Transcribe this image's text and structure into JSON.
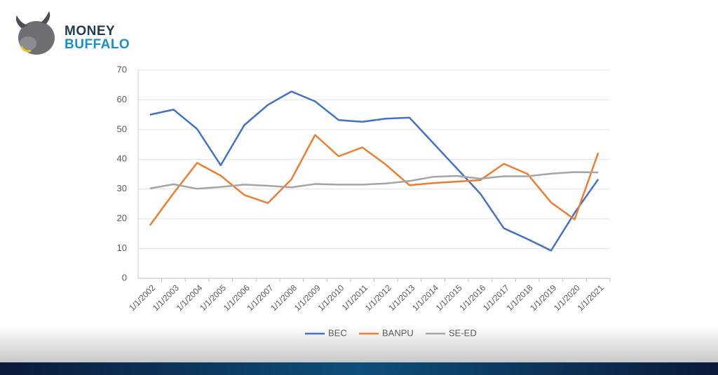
{
  "logo": {
    "line1": "MONEY",
    "line2": "BUFFALO"
  },
  "chart_data": {
    "type": "line",
    "categories": [
      "1/1/2002",
      "1/1/2003",
      "1/1/2004",
      "1/1/2005",
      "1/1/2006",
      "1/1/2007",
      "1/1/2008",
      "1/1/2009",
      "1/1/2010",
      "1/1/2011",
      "1/1/2012",
      "1/1/2013",
      "1/1/2014",
      "1/1/2015",
      "1/1/2016",
      "1/1/2017",
      "1/1/2018",
      "1/1/2019",
      "1/1/2020",
      "1/1/2021"
    ],
    "series": [
      {
        "name": "BEC",
        "color": "#4472c4",
        "values": [
          55,
          56.7,
          50.2,
          38,
          51.5,
          58.3,
          62.8,
          59.5,
          53.2,
          52.6,
          53.7,
          54,
          45.5,
          37,
          28.5,
          16.8,
          13.2,
          9.3,
          22,
          33.3
        ]
      },
      {
        "name": "BANPU",
        "color": "#ed7d31",
        "values": [
          17.8,
          28.6,
          38.8,
          34.5,
          28,
          25.3,
          33.3,
          48.2,
          41,
          44,
          38.2,
          31.3,
          32,
          32.5,
          33,
          38.5,
          35.1,
          25.5,
          19.8,
          42.2
        ]
      },
      {
        "name": "SE-ED",
        "color": "#a5a5a5",
        "values": [
          30.2,
          31.6,
          30.1,
          30.7,
          31.5,
          31.1,
          30.6,
          31.7,
          31.5,
          31.5,
          31.9,
          32.7,
          34.1,
          34.4,
          33.5,
          34.3,
          34.3,
          35.2,
          35.7,
          35.6
        ]
      }
    ],
    "ylim": [
      0,
      70
    ],
    "yticks": [
      0,
      10,
      20,
      30,
      40,
      50,
      60,
      70
    ],
    "grid": true,
    "legend": "bottom"
  }
}
